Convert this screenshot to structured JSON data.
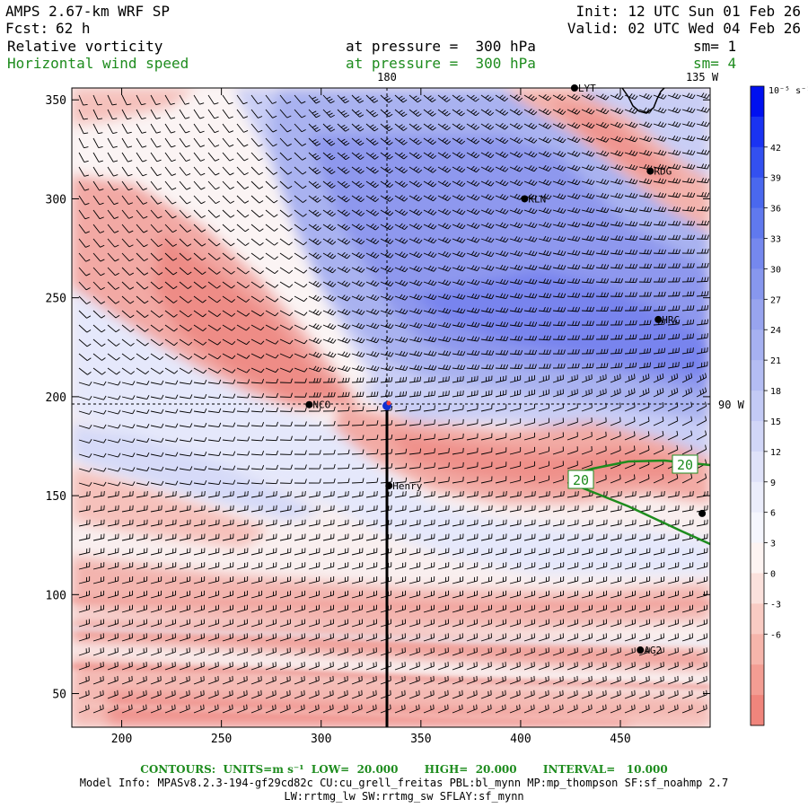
{
  "header": {
    "model": "AMPS 2.67-km WRF SP",
    "fcst_label": "Fcst:",
    "fcst_value": "62 h",
    "init": "Init: 12 UTC Sun 01 Feb 26",
    "valid": "Valid: 02 UTC Wed 04 Feb 26",
    "field1_name": "Relative vorticity",
    "field1_level": "at pressure =  300 hPa",
    "field1_sm": "sm= 1",
    "field2_name": "Horizontal wind speed",
    "field2_level": "at pressure =  300 hPa",
    "field2_sm": "sm= 4"
  },
  "map": {
    "x_ticks": [
      "200",
      "250",
      "300",
      "350",
      "400",
      "450"
    ],
    "y_ticks": [
      "50",
      "100",
      "150",
      "200",
      "250",
      "300",
      "350"
    ],
    "meridian_labels": [
      {
        "text": "180"
      },
      {
        "text": "135 W"
      },
      {
        "text": "90 W"
      }
    ],
    "stations": [
      {
        "name": "LYT",
        "x": 427,
        "y": 356
      },
      {
        "name": "RDG",
        "x": 465,
        "y": 314
      },
      {
        "name": "KLN",
        "x": 402,
        "y": 300
      },
      {
        "name": "HRC",
        "x": 469,
        "y": 239
      },
      {
        "name": "NCO",
        "x": 294,
        "y": 196
      },
      {
        "name": "Henry",
        "x": 334,
        "y": 155
      },
      {
        "name": "",
        "x": 491,
        "y": 141
      },
      {
        "name": "AG2",
        "x": 460,
        "y": 72
      }
    ],
    "contour_labels": [
      "20",
      "20"
    ],
    "colorbar": {
      "unit_label": "10⁻⁵ s⁻¹",
      "labels": [
        "42",
        "39",
        "36",
        "33",
        "30",
        "27",
        "24",
        "21",
        "18",
        "15",
        "12",
        "9",
        "6",
        "3",
        "0",
        "-3",
        "-6"
      ],
      "colors_top_to_bottom": [
        "#0010f0",
        "#1a33f2",
        "#3350f0",
        "#4a68ee",
        "#6079ee",
        "#7588ee",
        "#8797ee",
        "#98a4ef",
        "#a6b1f1",
        "#b4bdf3",
        "#c3caf5",
        "#d1d6f7",
        "#dfe2f9",
        "#ebedfb",
        "#f5f6fd",
        "#fdf4f2",
        "#fbe1dc",
        "#f9cbc3",
        "#f6b5ab",
        "#f39d93",
        "#f0857c"
      ]
    },
    "colors": {
      "positive_strong": "#5f6ef0",
      "negative_strong": "#ef8e89",
      "contour": "#1e8c1e"
    }
  },
  "footer": {
    "contours": "CONTOURS:  UNITS=m s⁻¹  LOW=  20.000       HIGH=  20.000       INTERVAL=   10.000",
    "model_info": "Model Info: MPASv8.2.3-194-gf29cd82c CU:cu_grell_freitas PBL:bl_mynn MP:mp_thompson SF:sf_noahmp 2.7",
    "model_info2": "LW:rrtmg_lw SW:rrtmg_sw SFLAY:sf_mynn"
  }
}
